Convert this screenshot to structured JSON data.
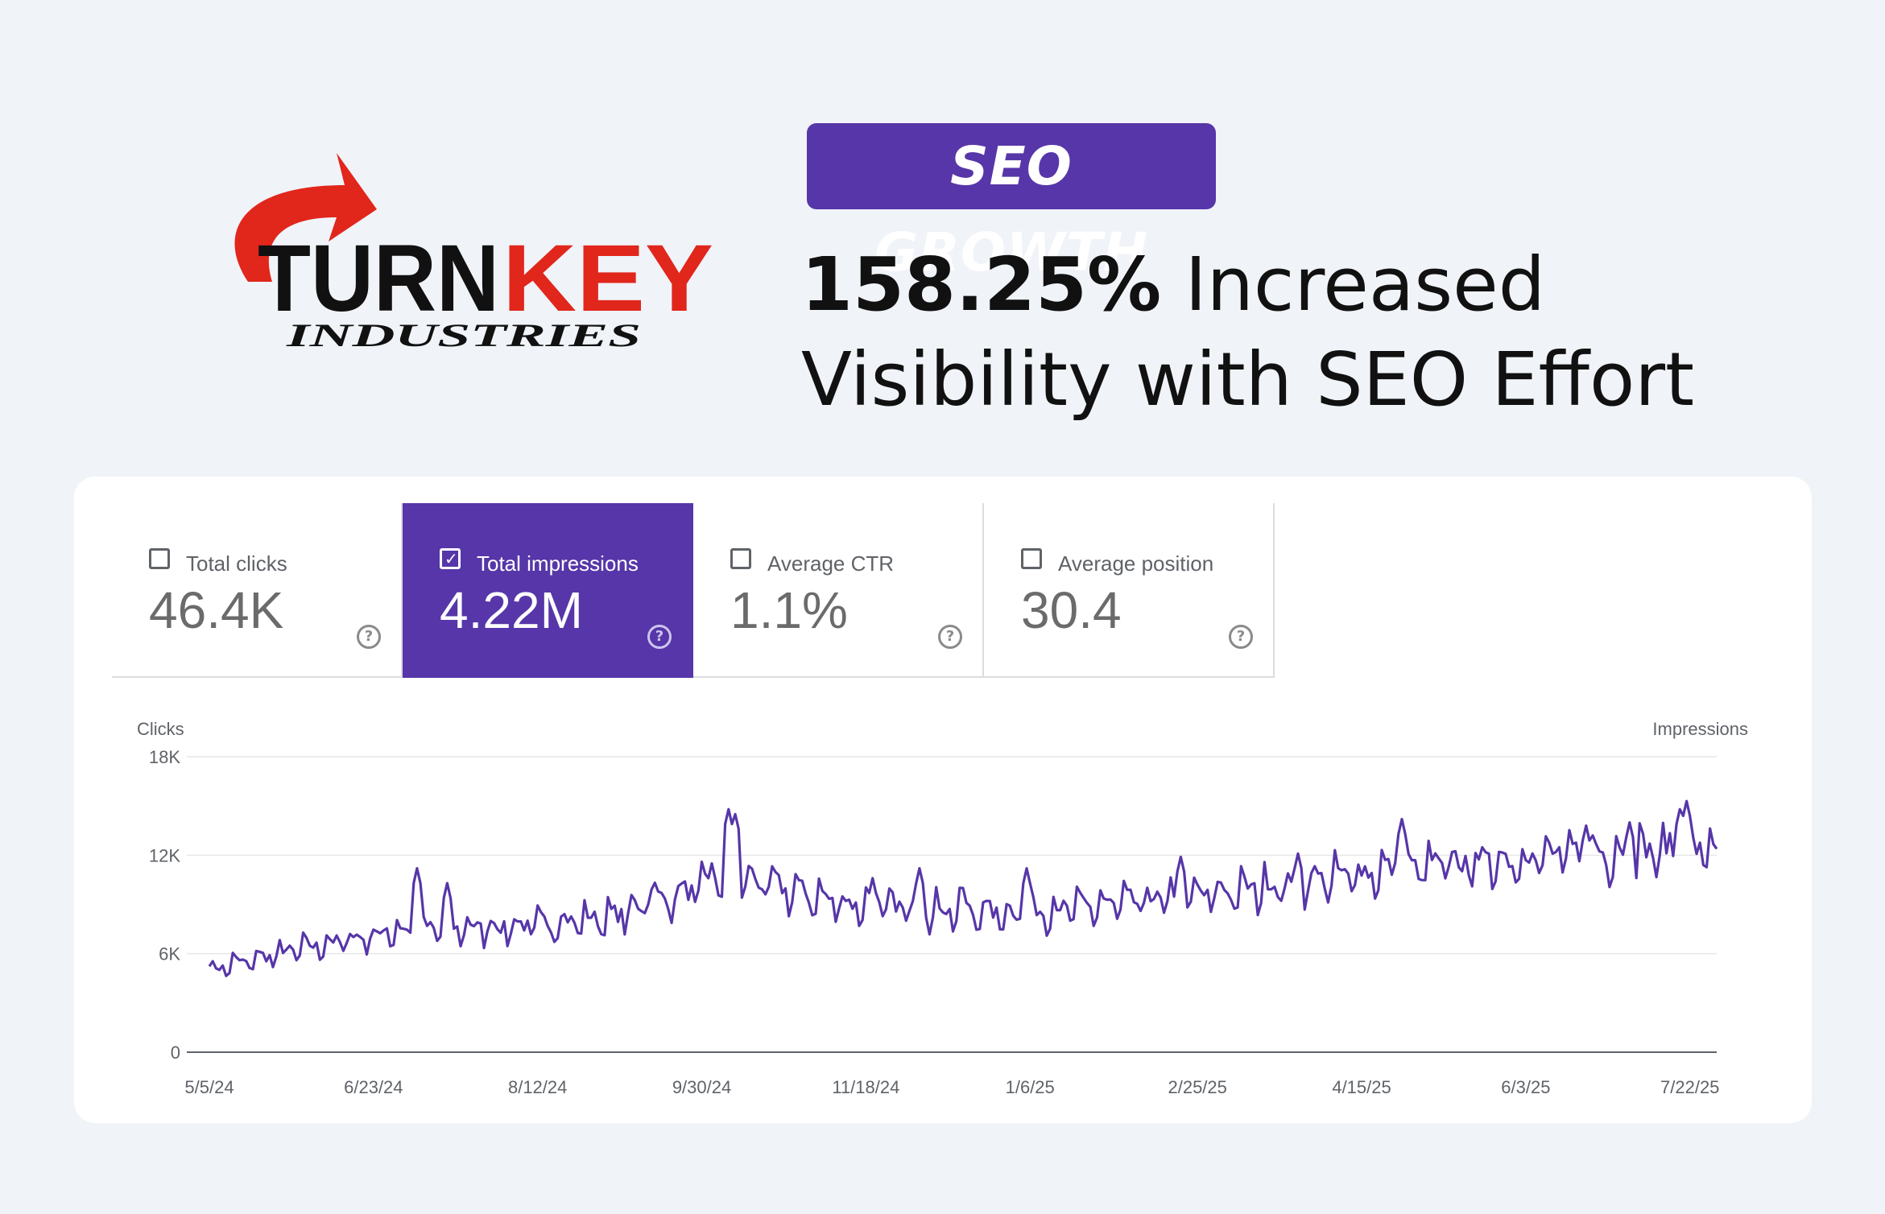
{
  "logo": {
    "brand_black": "TURN",
    "brand_red": "KEY",
    "subtitle": "INDUSTRIES",
    "red": "#e1261c",
    "black": "#111111"
  },
  "badge": {
    "text": "SEO GROWTH",
    "color": "#5636a8"
  },
  "headline": {
    "percent": "158.25%",
    "line1_rest": " Increased",
    "line2": "Visibility with SEO Effort"
  },
  "metrics": [
    {
      "label": "Total clicks",
      "value": "46.4K",
      "selected": false
    },
    {
      "label": "Total impressions",
      "value": "4.22M",
      "selected": true
    },
    {
      "label": "Average CTR",
      "value": "1.1%",
      "selected": false
    },
    {
      "label": "Average position",
      "value": "30.4",
      "selected": false
    }
  ],
  "help_glyph": "?",
  "check_glyph": "✓",
  "chart_data": {
    "type": "line",
    "left_axis_title": "Clicks",
    "right_axis_title": "Impressions",
    "y_ticks": [
      0,
      6000,
      12000,
      18000
    ],
    "y_tick_labels": [
      "0",
      "6K",
      "12K",
      "18K"
    ],
    "ylim": [
      0,
      18000
    ],
    "x_ticks": [
      "5/5/24",
      "6/23/24",
      "8/12/24",
      "9/30/24",
      "11/18/24",
      "1/6/25",
      "2/25/25",
      "4/15/25",
      "6/3/25",
      "7/22/25"
    ],
    "x_tick_index": [
      0,
      49,
      98,
      147,
      196,
      245,
      295,
      344,
      393,
      442
    ],
    "series": [
      {
        "name": "Total impressions",
        "color": "#5636a8",
        "base": [
          [
            0,
            5000
          ],
          [
            30,
            6400
          ],
          [
            60,
            7500
          ],
          [
            90,
            7600
          ],
          [
            120,
            8200
          ],
          [
            150,
            10200
          ],
          [
            160,
            10500
          ],
          [
            190,
            9000
          ],
          [
            240,
            8400
          ],
          [
            300,
            9600
          ],
          [
            350,
            11000
          ],
          [
            400,
            11900
          ],
          [
            450,
            12400
          ]
        ],
        "peaks": [
          [
            62,
            11200
          ],
          [
            71,
            10300
          ],
          [
            132,
            9900
          ],
          [
            150,
            11500
          ],
          [
            155,
            14800
          ],
          [
            157,
            14500
          ],
          [
            177,
            9500
          ],
          [
            198,
            10600
          ],
          [
            212,
            11200
          ],
          [
            225,
            10000
          ],
          [
            244,
            11200
          ],
          [
            290,
            11900
          ],
          [
            325,
            12100
          ],
          [
            356,
            14200
          ],
          [
            371,
            12200
          ],
          [
            411,
            13800
          ],
          [
            424,
            14000
          ],
          [
            439,
            14800
          ],
          [
            441,
            15300
          ]
        ]
      }
    ]
  }
}
